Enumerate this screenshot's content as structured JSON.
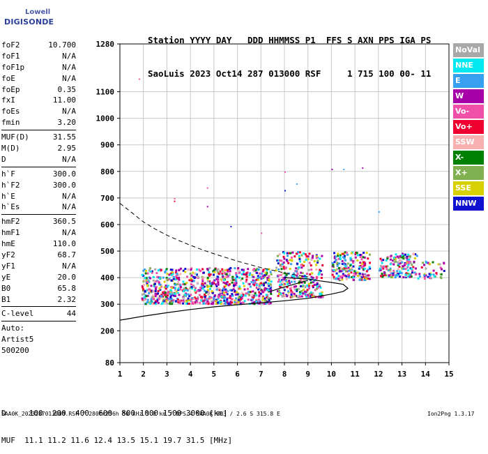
{
  "logo": {
    "line1": "Lowell",
    "line2": "DIGISONDE"
  },
  "header": {
    "line1": "Station YYYY DAY   DDD HHMMSS P1  FFS S AXN PPS IGA PS",
    "line2": "SaoLuis 2023 Oct14 287 013000 RSF     1 715 100 00- 11"
  },
  "params": {
    "group1": [
      {
        "name": "foF2",
        "value": "10.700"
      },
      {
        "name": "foF1",
        "value": "N/A"
      },
      {
        "name": "foF1p",
        "value": "N/A"
      },
      {
        "name": "foE",
        "value": "N/A"
      },
      {
        "name": "foEp",
        "value": "0.35"
      },
      {
        "name": "fxI",
        "value": "11.00"
      },
      {
        "name": "foEs",
        "value": "N/A"
      },
      {
        "name": "fmin",
        "value": "3.20"
      }
    ],
    "group2": [
      {
        "name": "MUF(D)",
        "value": "31.55"
      },
      {
        "name": "M(D)",
        "value": "2.95"
      },
      {
        "name": "D",
        "value": "N/A"
      }
    ],
    "group3": [
      {
        "name": "h`F",
        "value": "300.0"
      },
      {
        "name": "h`F2",
        "value": "300.0"
      },
      {
        "name": "h`E",
        "value": "N/A"
      },
      {
        "name": "h`Es",
        "value": "N/A"
      }
    ],
    "group4": [
      {
        "name": "hmF2",
        "value": "360.5"
      },
      {
        "name": "hmF1",
        "value": "N/A"
      },
      {
        "name": "hmE",
        "value": "110.0"
      },
      {
        "name": "yF2",
        "value": "68.7"
      },
      {
        "name": "yF1",
        "value": "N/A"
      },
      {
        "name": "yE",
        "value": "20.0"
      },
      {
        "name": "B0",
        "value": "65.8"
      },
      {
        "name": "B1",
        "value": "2.32"
      }
    ],
    "group5": [
      {
        "name": "C-level",
        "value": "44"
      }
    ],
    "notes": [
      "Auto:",
      "Artist5",
      "500200"
    ]
  },
  "legend": [
    {
      "label": "NoVal",
      "color": "#a8a8a8"
    },
    {
      "label": "NNE",
      "color": "#00e8f0"
    },
    {
      "label": "E",
      "color": "#38a0f0"
    },
    {
      "label": "W",
      "color": "#a800a8"
    },
    {
      "label": "Vo-",
      "color": "#f050a8"
    },
    {
      "label": "Vo+",
      "color": "#f00030"
    },
    {
      "label": "SSW",
      "color": "#f8b0b0"
    },
    {
      "label": "X-",
      "color": "#008000"
    },
    {
      "label": "X+",
      "color": "#80b050"
    },
    {
      "label": "SSE",
      "color": "#d8d000"
    },
    {
      "label": "NNW",
      "color": "#1010d0"
    }
  ],
  "footer": {
    "line1": "D     100  200  400  600  800 1000 1500 3000 [km]",
    "line2": "MUF  11.1 11.2 11.6 12.4 13.5 15.1 19.7 31.5 [MHz]"
  },
  "filename": "SAA0K_2023287013000.RSF / 280fx256h 50 kHz 5.0 km / DPS-4 SAA0K 903 / 2.6 S 315.8 E",
  "version": "Ion2Png 1.3.17",
  "chart_data": {
    "type": "scatter",
    "x_ticks": [
      1,
      2,
      3,
      4,
      5,
      6,
      7,
      8,
      9,
      10,
      11,
      12,
      13,
      14,
      15
    ],
    "y_ticks": [
      80,
      200,
      300,
      400,
      500,
      600,
      700,
      800,
      900,
      1000,
      1100,
      1280
    ],
    "y_tick_labels": [
      "80",
      "200",
      "300",
      "400",
      "500",
      "600",
      "700",
      "800",
      "900",
      "1000",
      "1100",
      "1280"
    ],
    "xlim": [
      1,
      15
    ],
    "ylim": [
      80,
      1280
    ],
    "grid": true,
    "legend_position": "right",
    "series": [
      {
        "color_key": "NoVal",
        "color": "#a8a8a8"
      },
      {
        "color_key": "NNE",
        "color": "#00e8f0"
      },
      {
        "color_key": "E",
        "color": "#38a0f0"
      },
      {
        "color_key": "W",
        "color": "#a800a8"
      },
      {
        "color_key": "Vo-",
        "color": "#f050a8"
      },
      {
        "color_key": "Vo+",
        "color": "#f00030"
      },
      {
        "color_key": "SSW",
        "color": "#f8b0b0"
      },
      {
        "color_key": "X-",
        "color": "#008000"
      },
      {
        "color_key": "X+",
        "color": "#80b050"
      },
      {
        "color_key": "SSE",
        "color": "#d8d000"
      },
      {
        "color_key": "NNW",
        "color": "#1010d0"
      }
    ],
    "echo_clusters": [
      {
        "f_min": 1.9,
        "f_max": 7.4,
        "h_min": 305,
        "h_max": 440,
        "density": 900
      },
      {
        "f_min": 7.6,
        "f_max": 9.6,
        "h_min": 330,
        "h_max": 500,
        "density": 300
      },
      {
        "f_min": 10.0,
        "f_max": 11.6,
        "h_min": 395,
        "h_max": 500,
        "density": 200
      },
      {
        "f_min": 12.0,
        "f_max": 13.6,
        "h_min": 405,
        "h_max": 495,
        "density": 160
      },
      {
        "f_min": 13.6,
        "f_max": 14.8,
        "h_min": 400,
        "h_max": 465,
        "density": 40
      }
    ],
    "trace_curve": [
      [
        1.0,
        240
      ],
      [
        2.0,
        255
      ],
      [
        3.0,
        268
      ],
      [
        4.0,
        280
      ],
      [
        5.0,
        290
      ],
      [
        6.0,
        298
      ],
      [
        7.0,
        305
      ],
      [
        8.0,
        313
      ],
      [
        9.0,
        322
      ],
      [
        10.0,
        338
      ],
      [
        10.5,
        348
      ],
      [
        10.7,
        360
      ],
      [
        10.5,
        375
      ],
      [
        10.0,
        382
      ],
      [
        9.5,
        388
      ],
      [
        9.0,
        395
      ],
      [
        8.0,
        400
      ]
    ],
    "trace_curve_2": [
      [
        7.3,
        345
      ],
      [
        7.8,
        360
      ],
      [
        8.4,
        375
      ],
      [
        9.0,
        390
      ]
    ],
    "dashed_curve": [
      [
        1.0,
        680
      ],
      [
        1.5,
        645
      ],
      [
        2.0,
        610
      ],
      [
        2.5,
        583
      ],
      [
        3.0,
        560
      ],
      [
        3.5,
        540
      ],
      [
        4.0,
        522
      ],
      [
        4.5,
        505
      ],
      [
        5.0,
        490
      ],
      [
        5.5,
        476
      ],
      [
        6.0,
        462
      ],
      [
        6.5,
        450
      ],
      [
        7.0,
        438
      ],
      [
        7.5,
        428
      ],
      [
        8.0,
        418
      ],
      [
        8.5,
        410
      ],
      [
        9.0,
        403
      ]
    ]
  }
}
